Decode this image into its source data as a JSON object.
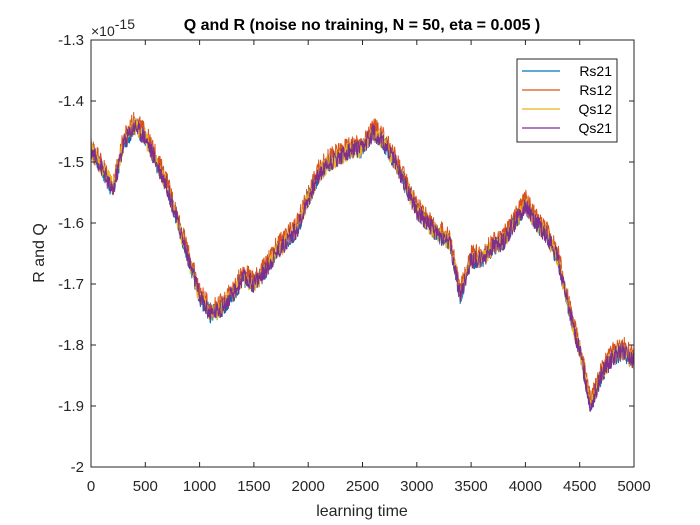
{
  "chart_data": {
    "type": "line",
    "title": "Q and R (noise no training, N = 50, eta = 0.005 )",
    "xlabel": "learning time",
    "ylabel": "R and Q",
    "y_exponent_base": "×10",
    "y_exponent_power": "-15",
    "xlim": [
      0,
      5000
    ],
    "ylim": [
      -2,
      -1.3
    ],
    "xticks": [
      0,
      500,
      1000,
      1500,
      2000,
      2500,
      3000,
      3500,
      4000,
      4500,
      5000
    ],
    "xtick_labels": [
      "0",
      "500",
      "1000",
      "1500",
      "2000",
      "2500",
      "3000",
      "3500",
      "4000",
      "4500",
      "5000"
    ],
    "yticks": [
      -2,
      -1.9,
      -1.8,
      -1.7,
      -1.6,
      -1.5,
      -1.4,
      -1.3
    ],
    "ytick_labels": [
      "-2",
      "-1.9",
      "-1.8",
      "-1.7",
      "-1.6",
      "-1.5",
      "-1.4",
      "-1.3"
    ],
    "grid": false,
    "legend_position": "top-right",
    "x": [
      0,
      100,
      200,
      300,
      400,
      500,
      600,
      700,
      800,
      900,
      1000,
      1100,
      1200,
      1300,
      1400,
      1500,
      1600,
      1700,
      1800,
      1900,
      2000,
      2100,
      2200,
      2300,
      2400,
      2500,
      2600,
      2700,
      2800,
      2900,
      3000,
      3100,
      3200,
      3300,
      3400,
      3500,
      3600,
      3700,
      3800,
      3900,
      4000,
      4100,
      4200,
      4300,
      4400,
      4500,
      4600,
      4700,
      4800,
      4900,
      5000
    ],
    "series": [
      {
        "name": "Rs21",
        "color": "#0072BD",
        "values": [
          -1.48,
          -1.51,
          -1.55,
          -1.47,
          -1.44,
          -1.46,
          -1.5,
          -1.54,
          -1.6,
          -1.66,
          -1.72,
          -1.75,
          -1.74,
          -1.72,
          -1.69,
          -1.7,
          -1.68,
          -1.65,
          -1.63,
          -1.61,
          -1.56,
          -1.52,
          -1.5,
          -1.49,
          -1.48,
          -1.48,
          -1.45,
          -1.47,
          -1.5,
          -1.54,
          -1.58,
          -1.6,
          -1.62,
          -1.63,
          -1.72,
          -1.66,
          -1.66,
          -1.64,
          -1.63,
          -1.6,
          -1.57,
          -1.6,
          -1.62,
          -1.66,
          -1.74,
          -1.81,
          -1.9,
          -1.85,
          -1.82,
          -1.81,
          -1.83
        ]
      },
      {
        "name": "Rs12",
        "color": "#D95319",
        "values": [
          -1.47,
          -1.5,
          -1.54,
          -1.46,
          -1.43,
          -1.45,
          -1.49,
          -1.53,
          -1.59,
          -1.65,
          -1.71,
          -1.74,
          -1.73,
          -1.71,
          -1.68,
          -1.69,
          -1.67,
          -1.64,
          -1.62,
          -1.6,
          -1.55,
          -1.51,
          -1.49,
          -1.48,
          -1.47,
          -1.47,
          -1.44,
          -1.46,
          -1.49,
          -1.53,
          -1.57,
          -1.59,
          -1.61,
          -1.62,
          -1.71,
          -1.65,
          -1.65,
          -1.63,
          -1.62,
          -1.59,
          -1.56,
          -1.59,
          -1.61,
          -1.65,
          -1.73,
          -1.8,
          -1.89,
          -1.84,
          -1.81,
          -1.8,
          -1.82
        ]
      },
      {
        "name": "Qs12",
        "color": "#EDB120",
        "values": [
          -1.48,
          -1.51,
          -1.54,
          -1.47,
          -1.44,
          -1.46,
          -1.5,
          -1.54,
          -1.6,
          -1.66,
          -1.72,
          -1.75,
          -1.74,
          -1.72,
          -1.69,
          -1.7,
          -1.68,
          -1.65,
          -1.63,
          -1.61,
          -1.56,
          -1.52,
          -1.5,
          -1.49,
          -1.48,
          -1.48,
          -1.45,
          -1.47,
          -1.5,
          -1.54,
          -1.58,
          -1.6,
          -1.62,
          -1.63,
          -1.72,
          -1.66,
          -1.66,
          -1.64,
          -1.63,
          -1.6,
          -1.57,
          -1.6,
          -1.62,
          -1.66,
          -1.74,
          -1.81,
          -1.9,
          -1.85,
          -1.82,
          -1.81,
          -1.83
        ]
      },
      {
        "name": "Qs21",
        "color": "#7E2F8E",
        "values": [
          -1.48,
          -1.51,
          -1.55,
          -1.47,
          -1.44,
          -1.46,
          -1.5,
          -1.54,
          -1.6,
          -1.66,
          -1.72,
          -1.75,
          -1.74,
          -1.72,
          -1.69,
          -1.7,
          -1.68,
          -1.65,
          -1.63,
          -1.61,
          -1.56,
          -1.52,
          -1.5,
          -1.49,
          -1.48,
          -1.48,
          -1.45,
          -1.47,
          -1.5,
          -1.54,
          -1.58,
          -1.6,
          -1.62,
          -1.63,
          -1.72,
          -1.66,
          -1.66,
          -1.64,
          -1.63,
          -1.6,
          -1.57,
          -1.6,
          -1.62,
          -1.66,
          -1.74,
          -1.81,
          -1.9,
          -1.85,
          -1.82,
          -1.81,
          -1.83
        ]
      }
    ]
  }
}
